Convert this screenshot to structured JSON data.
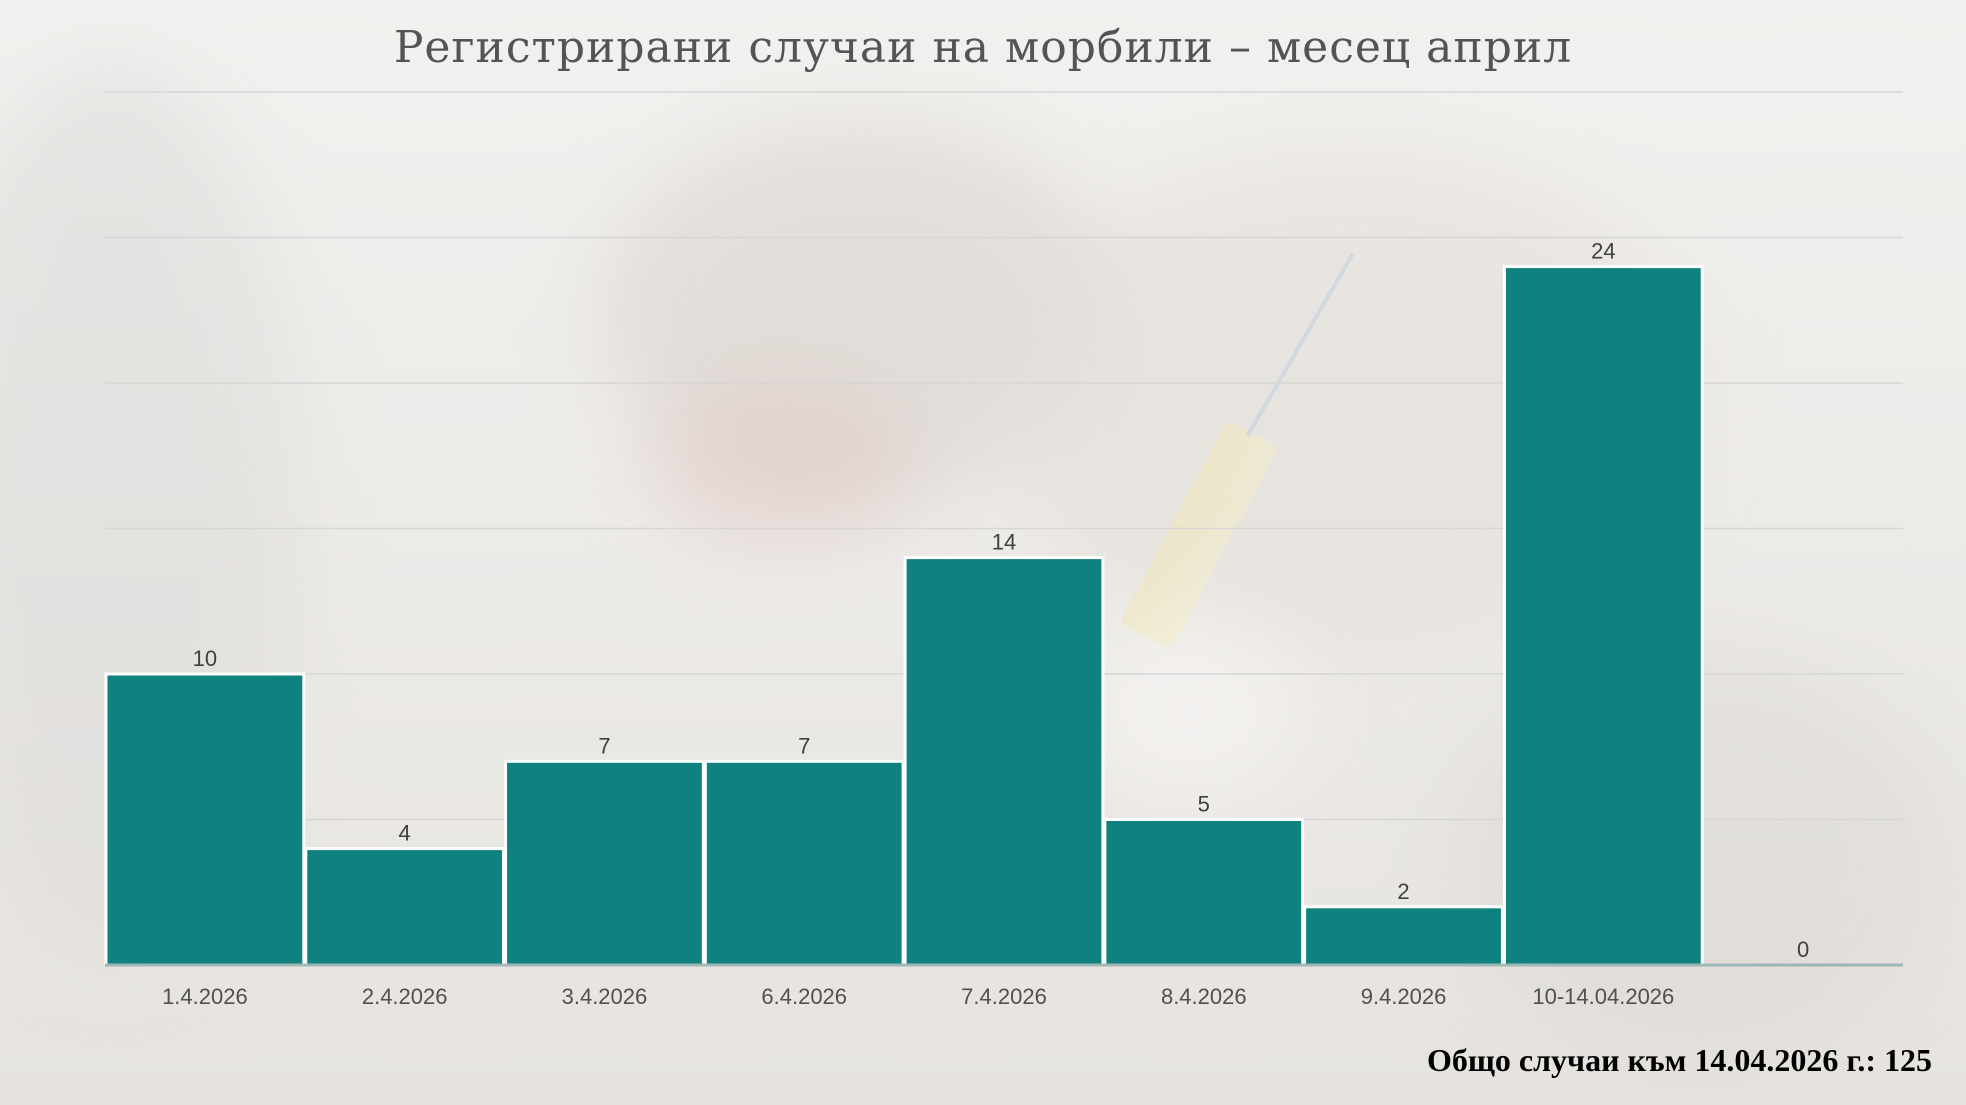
{
  "chart_data": {
    "type": "bar",
    "title": "Регистрирани случаи на морбили – месец април",
    "categories": [
      "1.4.2026",
      "2.4.2026",
      "3.4.2026",
      "6.4.2026",
      "7.4.2026",
      "8.4.2026",
      "9.4.2026",
      "10-14.04.2026",
      ""
    ],
    "values": [
      10,
      4,
      7,
      7,
      14,
      5,
      2,
      24,
      0
    ],
    "data_labels": [
      "10",
      "4",
      "7",
      "7",
      "14",
      "5",
      "2",
      "24",
      "0"
    ],
    "ylim": [
      0,
      30
    ],
    "grid": true,
    "legend": "none",
    "bar_color": "#0f8280",
    "xlabel": "",
    "ylabel": ""
  },
  "footer": {
    "total_text": "Общо случаи към 14.04.2026 г.: 125"
  }
}
